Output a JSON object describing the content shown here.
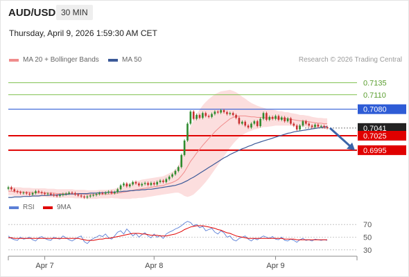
{
  "header": {
    "pair": "AUD/USD",
    "timeframe": "30 MIN",
    "timestamp": "Thursday, April 9, 2026 1:59:30 AM CET",
    "credit": "Research © 2026 Trading Central"
  },
  "legend_top": [
    {
      "label": "MA 20 + Bollinger Bands",
      "color": "#f08c8c"
    },
    {
      "label": "MA 50",
      "color": "#3b5998"
    }
  ],
  "legend_bottom": [
    {
      "label": "RSI",
      "color": "#5b7fd6"
    },
    {
      "label": "9MA",
      "color": "#e00000"
    }
  ],
  "colors": {
    "up": "#2e8b2e",
    "down": "#c83030",
    "target": "#7cbf4a",
    "pivot": "#2e5cd6",
    "support": "#e00000",
    "arrow": "#3b64a8"
  },
  "chart_data": {
    "type": "candlestick",
    "x_ticks": [
      "Apr 7",
      "Apr 8",
      "Apr 9"
    ],
    "ylim": [
      0.689,
      0.717
    ],
    "levels": [
      {
        "value": 0.7135,
        "label": "0.7135",
        "kind": "target"
      },
      {
        "value": 0.711,
        "label": "0.7110",
        "kind": "target"
      },
      {
        "value": 0.708,
        "label": "0.7080",
        "kind": "pivot"
      },
      {
        "value": 0.7041,
        "label": "0.7041",
        "kind": "last"
      },
      {
        "value": 0.7025,
        "label": "0.7025",
        "kind": "support"
      },
      {
        "value": 0.6995,
        "label": "0.6995",
        "kind": "support"
      }
    ],
    "close": [
      0.6918,
      0.6914,
      0.691,
      0.6908,
      0.6906,
      0.6907,
      0.6905,
      0.6903,
      0.6906,
      0.691,
      0.6908,
      0.6906,
      0.6904,
      0.6905,
      0.6903,
      0.6901,
      0.69,
      0.6902,
      0.6904,
      0.6905,
      0.6907,
      0.6906,
      0.6903,
      0.6901,
      0.6899,
      0.6897,
      0.6899,
      0.6901,
      0.6902,
      0.6904,
      0.6906,
      0.6905,
      0.6907,
      0.6909,
      0.6906,
      0.6908,
      0.6914,
      0.6922,
      0.6926,
      0.692,
      0.6924,
      0.6929,
      0.6926,
      0.6922,
      0.6925,
      0.6927,
      0.6923,
      0.6927,
      0.6924,
      0.6929,
      0.6932,
      0.6929,
      0.6935,
      0.694,
      0.6945,
      0.6952,
      0.696,
      0.6985,
      0.7015,
      0.705,
      0.7075,
      0.706,
      0.7068,
      0.7062,
      0.7072,
      0.7066,
      0.7064,
      0.707,
      0.7075,
      0.7073,
      0.7078,
      0.7074,
      0.707,
      0.7072,
      0.7068,
      0.7062,
      0.705,
      0.7054,
      0.7046,
      0.7042,
      0.705,
      0.7055,
      0.7045,
      0.706,
      0.7072,
      0.7058,
      0.7064,
      0.706,
      0.7066,
      0.7058,
      0.7063,
      0.7055,
      0.7061,
      0.705,
      0.7046,
      0.7038,
      0.7046,
      0.7055,
      0.705,
      0.7046,
      0.7043,
      0.7048,
      0.7044,
      0.7045,
      0.7043,
      0.7041
    ],
    "ma20": [
      0.691,
      0.691,
      0.6909,
      0.6909,
      0.6909,
      0.6908,
      0.6908,
      0.6908,
      0.6907,
      0.6907,
      0.6907,
      0.6907,
      0.6907,
      0.6906,
      0.6906,
      0.6906,
      0.6905,
      0.6905,
      0.6905,
      0.6905,
      0.6905,
      0.6905,
      0.6904,
      0.6904,
      0.6904,
      0.6904,
      0.6903,
      0.6903,
      0.6903,
      0.6903,
      0.6904,
      0.6904,
      0.6904,
      0.6904,
      0.6905,
      0.6905,
      0.6906,
      0.6907,
      0.6908,
      0.6909,
      0.691,
      0.6912,
      0.6913,
      0.6914,
      0.6915,
      0.6916,
      0.6917,
      0.6918,
      0.6919,
      0.692,
      0.6921,
      0.6922,
      0.6924,
      0.6926,
      0.6928,
      0.6931,
      0.6935,
      0.6942,
      0.695,
      0.6961,
      0.6972,
      0.698,
      0.6989,
      0.6997,
      0.7005,
      0.7012,
      0.7019,
      0.7026,
      0.7033,
      0.7039,
      0.7045,
      0.705,
      0.7055,
      0.706,
      0.7063,
      0.7065,
      0.7066,
      0.7066,
      0.7066,
      0.7065,
      0.7064,
      0.7064,
      0.7063,
      0.7063,
      0.7063,
      0.7062,
      0.7062,
      0.7062,
      0.7062,
      0.7061,
      0.7061,
      0.706,
      0.706,
      0.7059,
      0.7058,
      0.7057,
      0.7056,
      0.7056,
      0.7055,
      0.7054,
      0.7053,
      0.7052,
      0.7051,
      0.7051,
      0.705,
      0.705
    ],
    "ma50": [
      0.6897,
      0.6897,
      0.6898,
      0.6898,
      0.6898,
      0.6899,
      0.6899,
      0.6899,
      0.69,
      0.69,
      0.69,
      0.6901,
      0.6901,
      0.6901,
      0.6902,
      0.6902,
      0.6902,
      0.6903,
      0.6903,
      0.6903,
      0.6904,
      0.6904,
      0.6904,
      0.6905,
      0.6905,
      0.6905,
      0.6905,
      0.6906,
      0.6906,
      0.6906,
      0.6907,
      0.6907,
      0.6907,
      0.6908,
      0.6908,
      0.6908,
      0.6909,
      0.6909,
      0.691,
      0.691,
      0.6911,
      0.6911,
      0.6912,
      0.6912,
      0.6913,
      0.6913,
      0.6914,
      0.6914,
      0.6915,
      0.6916,
      0.6917,
      0.6918,
      0.6919,
      0.692,
      0.6921,
      0.6922,
      0.6924,
      0.6926,
      0.6929,
      0.6932,
      0.6936,
      0.6939,
      0.6943,
      0.6947,
      0.6951,
      0.6955,
      0.6959,
      0.6963,
      0.6967,
      0.6971,
      0.6975,
      0.6979,
      0.6982,
      0.6986,
      0.6989,
      0.6992,
      0.6995,
      0.6998,
      0.7,
      0.7003,
      0.7005,
      0.7008,
      0.701,
      0.7012,
      0.7014,
      0.7016,
      0.7018,
      0.702,
      0.7022,
      0.7024,
      0.7026,
      0.7028,
      0.703,
      0.7031,
      0.7033,
      0.7034,
      0.7035,
      0.7036,
      0.7037,
      0.7038,
      0.7039,
      0.704,
      0.7041,
      0.7042,
      0.7043,
      0.7044
    ],
    "bb_width": [
      0.0009,
      0.0009,
      0.0009,
      0.0009,
      0.0009,
      0.0009,
      0.0009,
      0.0009,
      0.0009,
      0.0009,
      0.0009,
      0.0009,
      0.0009,
      0.0009,
      0.0009,
      0.0009,
      0.0009,
      0.0009,
      0.0009,
      0.0009,
      0.0009,
      0.0009,
      0.0009,
      0.0009,
      0.0009,
      0.0009,
      0.0009,
      0.0009,
      0.0009,
      0.0009,
      0.0009,
      0.0009,
      0.0009,
      0.0009,
      0.0009,
      0.001,
      0.0011,
      0.0013,
      0.0014,
      0.0015,
      0.0016,
      0.0017,
      0.0018,
      0.0018,
      0.0019,
      0.0019,
      0.0019,
      0.0019,
      0.0019,
      0.0019,
      0.0019,
      0.0019,
      0.002,
      0.0021,
      0.0022,
      0.0024,
      0.0028,
      0.0038,
      0.005,
      0.0063,
      0.0072,
      0.0077,
      0.008,
      0.0082,
      0.0083,
      0.0083,
      0.0082,
      0.008,
      0.0078,
      0.0075,
      0.0072,
      0.0068,
      0.0064,
      0.006,
      0.0055,
      0.005,
      0.0045,
      0.004,
      0.0036,
      0.0032,
      0.0029,
      0.0026,
      0.0024,
      0.0022,
      0.002,
      0.0019,
      0.0018,
      0.0017,
      0.0016,
      0.0015,
      0.0015,
      0.0014,
      0.0014,
      0.0013,
      0.0013,
      0.0013,
      0.0012,
      0.0012,
      0.0012,
      0.0012,
      0.0011,
      0.0011,
      0.0011,
      0.0011,
      0.0011,
      0.0011
    ],
    "rsi_ticks": [
      70,
      50,
      30
    ],
    "rsi_ylim": [
      20,
      80
    ],
    "rsi": [
      52,
      48,
      46,
      45,
      50,
      47,
      48,
      50,
      46,
      44,
      49,
      51,
      48,
      46,
      45,
      50,
      48,
      47,
      52,
      49,
      46,
      44,
      47,
      50,
      52,
      43,
      40,
      45,
      48,
      50,
      53,
      51,
      55,
      49,
      47,
      52,
      58,
      60,
      55,
      63,
      58,
      52,
      56,
      50,
      54,
      57,
      52,
      49,
      55,
      50,
      53,
      48,
      55,
      58,
      60,
      63,
      65,
      68,
      72,
      75,
      73,
      68,
      70,
      65,
      67,
      60,
      62,
      64,
      58,
      55,
      60,
      57,
      50,
      52,
      46,
      44,
      48,
      50,
      52,
      47,
      44,
      48,
      46,
      49,
      52,
      50,
      48,
      51,
      47,
      46,
      50,
      45,
      44,
      47,
      45,
      42,
      46,
      48,
      45,
      46,
      44,
      47,
      46,
      45,
      46,
      45
    ],
    "rsi_ma": [
      49,
      49,
      48,
      48,
      48,
      48,
      48,
      48,
      48,
      48,
      48,
      48,
      48,
      48,
      48,
      48,
      48,
      48,
      48,
      48,
      48,
      48,
      48,
      48,
      47,
      46,
      45,
      45,
      45,
      46,
      47,
      47,
      48,
      48,
      49,
      50,
      51,
      52,
      53,
      54,
      55,
      56,
      56,
      56,
      55,
      55,
      54,
      53,
      53,
      53,
      52,
      52,
      52,
      53,
      54,
      55,
      57,
      59,
      62,
      64,
      66,
      67,
      68,
      68,
      68,
      67,
      66,
      65,
      64,
      62,
      61,
      59,
      57,
      56,
      54,
      52,
      51,
      50,
      49,
      48,
      48,
      48,
      48,
      48,
      48,
      48,
      48,
      48,
      48,
      48,
      48,
      47,
      47,
      47,
      47,
      46,
      46,
      46,
      46,
      46,
      46,
      46,
      46,
      46,
      46,
      46
    ],
    "projection": {
      "from": 0.7041,
      "to": 0.6995
    }
  }
}
